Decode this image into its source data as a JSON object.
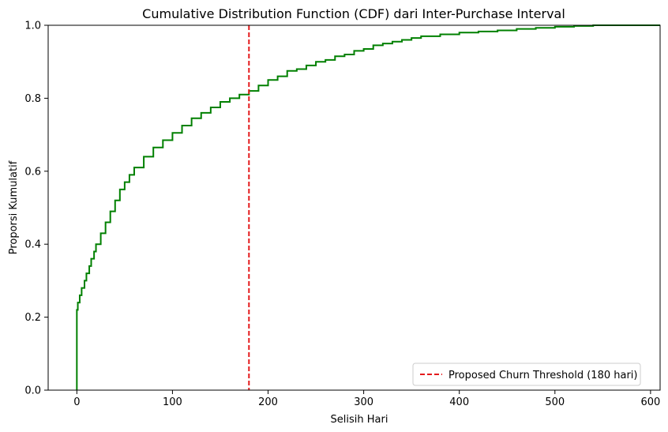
{
  "chart_data": {
    "type": "line",
    "title": "Cumulative Distribution Function (CDF) dari Inter-Purchase Interval",
    "xlabel": "Selisih Hari",
    "ylabel": "Proporsi Kumulatif",
    "xlim": [
      -30,
      610
    ],
    "ylim": [
      0,
      1
    ],
    "x_ticks": [
      0,
      100,
      200,
      300,
      400,
      500,
      600
    ],
    "y_ticks": [
      0.0,
      0.2,
      0.4,
      0.6,
      0.8,
      1.0
    ],
    "x_tick_labels": [
      "0",
      "100",
      "200",
      "300",
      "400",
      "500",
      "600"
    ],
    "y_tick_labels": [
      "0.0",
      "0.2",
      "0.4",
      "0.6",
      "0.8",
      "1.0"
    ],
    "grid": false,
    "legend": {
      "position": "lower-right",
      "entries": [
        "Proposed Churn Threshold (180 hari)"
      ]
    },
    "series": [
      {
        "style": "step",
        "color": "#008000",
        "x": [
          0,
          0,
          1,
          3,
          5,
          8,
          10,
          13,
          15,
          18,
          20,
          25,
          30,
          35,
          40,
          45,
          50,
          55,
          60,
          70,
          80,
          90,
          100,
          110,
          120,
          130,
          140,
          150,
          160,
          170,
          180,
          190,
          200,
          210,
          220,
          230,
          240,
          250,
          260,
          270,
          280,
          290,
          300,
          310,
          320,
          330,
          340,
          350,
          360,
          380,
          400,
          420,
          440,
          460,
          480,
          500,
          520,
          540,
          560,
          580
        ],
        "y": [
          0,
          0.22,
          0.24,
          0.26,
          0.28,
          0.3,
          0.32,
          0.34,
          0.36,
          0.38,
          0.4,
          0.43,
          0.46,
          0.49,
          0.52,
          0.55,
          0.57,
          0.59,
          0.61,
          0.64,
          0.665,
          0.685,
          0.705,
          0.725,
          0.745,
          0.76,
          0.775,
          0.79,
          0.8,
          0.81,
          0.82,
          0.835,
          0.85,
          0.86,
          0.875,
          0.88,
          0.89,
          0.9,
          0.905,
          0.915,
          0.92,
          0.93,
          0.935,
          0.945,
          0.95,
          0.955,
          0.96,
          0.965,
          0.97,
          0.975,
          0.98,
          0.983,
          0.986,
          0.99,
          0.993,
          0.996,
          0.998,
          1.0,
          1.0,
          1.0
        ]
      }
    ],
    "threshold": {
      "x": 180,
      "label": "Proposed Churn Threshold (180 hari)",
      "color": "#e41a1c",
      "style": "dashed"
    }
  }
}
